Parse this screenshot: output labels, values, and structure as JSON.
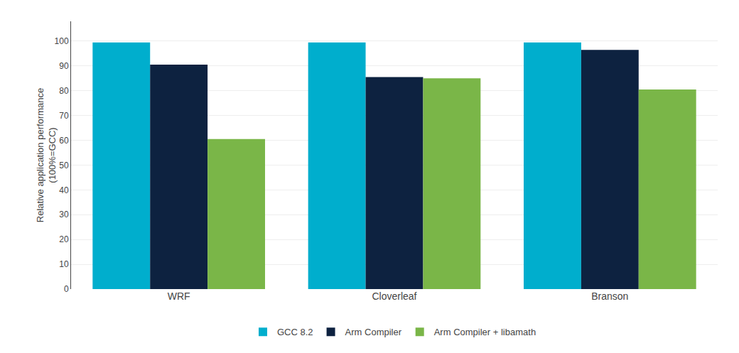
{
  "chart_data": {
    "type": "bar",
    "categories": [
      "WRF",
      "Cloverleaf",
      "Branson"
    ],
    "series": [
      {
        "name": "GCC 8.2",
        "color": "#00AECD",
        "values": [
          99.5,
          99.5,
          99.5
        ]
      },
      {
        "name": "Arm Compiler",
        "color": "#0D2240",
        "values": [
          90.5,
          85.5,
          96.5
        ]
      },
      {
        "name": "Arm Compiler + libamath",
        "color": "#7AB648",
        "values": [
          60.5,
          85.0,
          80.5
        ]
      }
    ],
    "ylabel": "Relative application performance\n(100%=GCC)",
    "ylim": [
      0,
      108
    ],
    "yticks": [
      0,
      10,
      20,
      30,
      40,
      50,
      60,
      70,
      80,
      90,
      100
    ],
    "grid": true,
    "legend": "bottom"
  }
}
